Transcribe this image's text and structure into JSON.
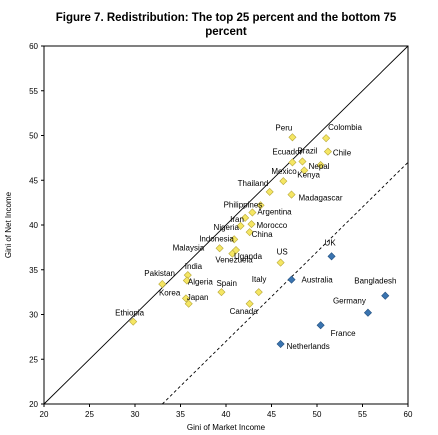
{
  "chart_data": {
    "type": "scatter",
    "title_line1": "Figure 7. Redistribution: The top 25 percent and the bottom 75",
    "title_line2": "percent",
    "xlabel": "Gini of Market Income",
    "ylabel": "Gini of Net Income",
    "xlim": [
      20,
      60
    ],
    "ylim": [
      20,
      60
    ],
    "xticks": [
      20,
      25,
      30,
      35,
      40,
      45,
      50,
      55,
      60
    ],
    "yticks": [
      20,
      25,
      30,
      35,
      40,
      45,
      50,
      55,
      60
    ],
    "grid": false,
    "reference_lines": [
      {
        "style": "solid",
        "from": [
          20,
          20
        ],
        "to": [
          60,
          60
        ]
      },
      {
        "style": "dashed",
        "from": [
          33,
          20
        ],
        "to": [
          60,
          47
        ]
      }
    ],
    "colors": {
      "bottom75": "#f5e663",
      "bottom75_stroke": "#b8a83a",
      "top25": "#3a74b0",
      "axis": "#000000"
    },
    "series": [
      {
        "group": "bottom75",
        "points": [
          {
            "label": "Peru",
            "x": 47.3,
            "y": 49.8
          },
          {
            "label": "Colombia",
            "x": 51.0,
            "y": 49.7
          },
          {
            "label": "Chile",
            "x": 51.2,
            "y": 48.2
          },
          {
            "label": "Ecuador",
            "x": 47.3,
            "y": 47.0
          },
          {
            "label": "Brazil",
            "x": 48.4,
            "y": 47.1
          },
          {
            "label": "Nepal",
            "x": 50.4,
            "y": 46.7
          },
          {
            "label": "Kenya",
            "x": 48.6,
            "y": 46.1
          },
          {
            "label": "Mexico",
            "x": 46.3,
            "y": 44.9
          },
          {
            "label": "Thailand",
            "x": 44.8,
            "y": 43.7
          },
          {
            "label": "Madagascar",
            "x": 47.2,
            "y": 43.4
          },
          {
            "label": "Philippines",
            "x": 43.8,
            "y": 42.2
          },
          {
            "label": "Argentina",
            "x": 42.9,
            "y": 41.4
          },
          {
            "label": "Iran",
            "x": 42.1,
            "y": 40.8
          },
          {
            "label": "Morocco",
            "x": 42.8,
            "y": 40.1
          },
          {
            "label": "Nigeria",
            "x": 41.6,
            "y": 39.9
          },
          {
            "label": "China",
            "x": 42.6,
            "y": 39.2
          },
          {
            "label": "Indonesia",
            "x": 40.9,
            "y": 38.4
          },
          {
            "label": "Uganda",
            "x": 41.1,
            "y": 37.2
          },
          {
            "label": "Malaysia",
            "x": 39.3,
            "y": 37.4
          },
          {
            "label": "Venezuela",
            "x": 40.7,
            "y": 36.8
          },
          {
            "label": "US",
            "x": 46.0,
            "y": 35.8
          },
          {
            "label": "Pakistan",
            "x": 33.0,
            "y": 33.4
          },
          {
            "label": "India",
            "x": 35.8,
            "y": 34.4
          },
          {
            "label": "Algeria",
            "x": 35.7,
            "y": 33.8
          },
          {
            "label": "Spain",
            "x": 39.5,
            "y": 32.5
          },
          {
            "label": "Korea",
            "x": 35.6,
            "y": 31.8
          },
          {
            "label": "Italy",
            "x": 43.6,
            "y": 32.5
          },
          {
            "label": "Japan",
            "x": 35.9,
            "y": 31.2
          },
          {
            "label": "Canada",
            "x": 42.6,
            "y": 31.2
          },
          {
            "label": "Ethiopia",
            "x": 29.8,
            "y": 29.2
          }
        ]
      },
      {
        "group": "top25",
        "points": [
          {
            "label": "UK",
            "x": 51.6,
            "y": 36.5
          },
          {
            "label": "Australia",
            "x": 47.2,
            "y": 33.9
          },
          {
            "label": "Bangladesh",
            "x": 57.5,
            "y": 32.1
          },
          {
            "label": "Germany",
            "x": 55.6,
            "y": 30.2
          },
          {
            "label": "France",
            "x": 50.4,
            "y": 28.8
          },
          {
            "label": "Netherlands",
            "x": 46.0,
            "y": 26.7
          }
        ]
      }
    ]
  }
}
